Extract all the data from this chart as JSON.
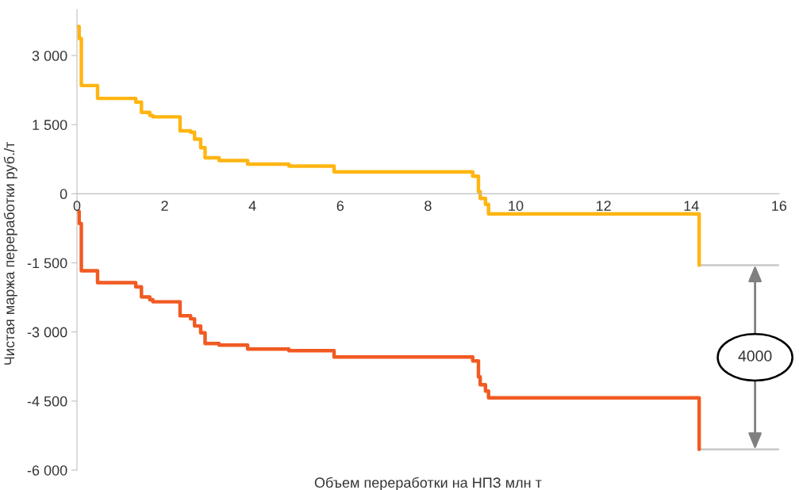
{
  "chart_data": {
    "type": "step",
    "xlabel": "Объем переработки на НПЗ млн т",
    "ylabel": "Чистая маржа переработки руб./т",
    "xlim": [
      0,
      16
    ],
    "xticks": [
      0,
      2,
      4,
      6,
      8,
      10,
      12,
      14,
      16
    ],
    "ylim": [
      -6000,
      4000
    ],
    "yticks": [
      {
        "value": -6000,
        "label": "-6 000"
      },
      {
        "value": -4500,
        "label": "-4 500"
      },
      {
        "value": -3000,
        "label": "-3 000"
      },
      {
        "value": -1500,
        "label": "-1 500"
      },
      0,
      {
        "value": 1500,
        "label": "1 500"
      },
      {
        "value": 3000,
        "label": "3 000"
      }
    ],
    "grid": false,
    "series": [
      {
        "color": "#ffb511",
        "x": [
          0,
          0.05,
          0.1,
          0.47,
          1.34,
          1.47,
          1.66,
          1.73,
          2.35,
          2.59,
          2.68,
          2.82,
          2.92,
          3.24,
          3.89,
          4.83,
          5.86,
          9.02,
          9.15,
          9.19,
          9.31,
          9.38,
          14.18
        ],
        "values": [
          3630,
          3370,
          2350,
          2070,
          1990,
          1765,
          1700,
          1670,
          1365,
          1335,
          1185,
          1000,
          780,
          720,
          645,
          600,
          475,
          380,
          45,
          -100,
          -230,
          -435,
          -1550
        ]
      },
      {
        "color": "#f15a22",
        "x": [
          0,
          0.05,
          0.1,
          0.47,
          1.34,
          1.47,
          1.66,
          1.73,
          2.35,
          2.59,
          2.68,
          2.82,
          2.92,
          3.24,
          3.89,
          4.83,
          5.86,
          9.02,
          9.15,
          9.19,
          9.31,
          9.38,
          14.18
        ],
        "values": [
          -380,
          -645,
          -1670,
          -1930,
          -2020,
          -2240,
          -2300,
          -2345,
          -2650,
          -2715,
          -2870,
          -3020,
          -3250,
          -3285,
          -3370,
          -3405,
          -3545,
          -3630,
          -3975,
          -4145,
          -4285,
          -4430,
          -5550
        ]
      },
      {
        "type": "line",
        "color": "#c8c8c8",
        "x": [
          14.18,
          16
        ],
        "values": [
          -1550,
          -1550
        ]
      },
      {
        "type": "line",
        "color": "#c8c8c8",
        "x": [
          14.18,
          16
        ],
        "values": [
          -5550,
          -5550
        ]
      }
    ],
    "annotations": [
      "4000"
    ]
  }
}
